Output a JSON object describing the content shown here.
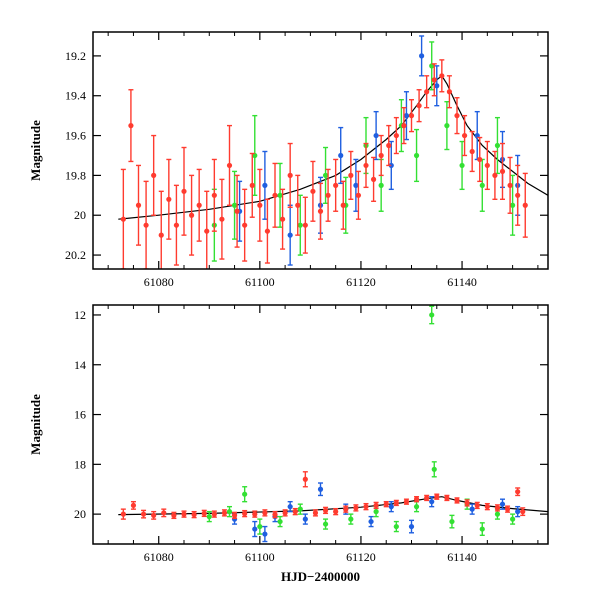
{
  "chart_data": [
    {
      "type": "scatter",
      "panel": "top",
      "title": "",
      "xlabel": "",
      "ylabel": "Magnitude",
      "xlim": [
        61067,
        61157
      ],
      "ylim": [
        20.27,
        19.08
      ],
      "y_inverted": true,
      "xticks": [
        61080,
        61100,
        61120,
        61140
      ],
      "xtick_labels": [
        "61080",
        "61100",
        "61120",
        "61140"
      ],
      "yticks": [
        19.2,
        19.4,
        19.6,
        19.8,
        20,
        20.2
      ],
      "ytick_labels": [
        "19.2",
        "19.4",
        "19.6",
        "19.8",
        "20",
        "20.2"
      ],
      "series": [
        {
          "name": "red",
          "color": "#ff3b2f",
          "points": [
            [
              61073,
              20.02,
              0.25
            ],
            [
              61074.5,
              19.55,
              0.18
            ],
            [
              61076,
              19.95,
              0.2
            ],
            [
              61077.5,
              20.05,
              0.22
            ],
            [
              61079,
              19.8,
              0.2
            ],
            [
              61080.5,
              20.1,
              0.22
            ],
            [
              61082,
              19.92,
              0.2
            ],
            [
              61083.5,
              20.05,
              0.2
            ],
            [
              61085,
              19.88,
              0.22
            ],
            [
              61086.5,
              20.0,
              0.2
            ],
            [
              61088,
              19.95,
              0.18
            ],
            [
              61089.5,
              20.08,
              0.2
            ],
            [
              61091,
              19.9,
              0.18
            ],
            [
              61092.5,
              20.02,
              0.2
            ],
            [
              61094,
              19.75,
              0.2
            ],
            [
              61095.5,
              19.98,
              0.18
            ],
            [
              61097,
              20.05,
              0.18
            ],
            [
              61098.5,
              19.85,
              0.16
            ],
            [
              61100,
              19.95,
              0.18
            ],
            [
              61101.5,
              20.08,
              0.16
            ],
            [
              61103,
              19.9,
              0.16
            ],
            [
              61104.5,
              20.02,
              0.15
            ],
            [
              61106,
              19.8,
              0.16
            ],
            [
              61107.5,
              19.95,
              0.15
            ],
            [
              61109,
              20.05,
              0.14
            ],
            [
              61110.5,
              19.88,
              0.15
            ],
            [
              61112,
              19.98,
              0.14
            ],
            [
              61113.5,
              19.9,
              0.13
            ],
            [
              61115,
              19.85,
              0.13
            ],
            [
              61116.5,
              19.95,
              0.12
            ],
            [
              61118,
              19.8,
              0.12
            ],
            [
              61119.5,
              19.9,
              0.12
            ],
            [
              61121,
              19.75,
              0.11
            ],
            [
              61122.5,
              19.82,
              0.11
            ],
            [
              61124,
              19.7,
              0.1
            ],
            [
              61125.5,
              19.65,
              0.1
            ],
            [
              61127,
              19.6,
              0.09
            ],
            [
              61128.5,
              19.55,
              0.09
            ],
            [
              61130,
              19.5,
              0.08
            ],
            [
              61131.5,
              19.45,
              0.08
            ],
            [
              61133,
              19.38,
              0.08
            ],
            [
              61134.5,
              19.32,
              0.08
            ],
            [
              61136,
              19.3,
              0.08
            ],
            [
              61137.5,
              19.38,
              0.08
            ],
            [
              61139,
              19.5,
              0.09
            ],
            [
              61140.5,
              19.6,
              0.1
            ],
            [
              61142,
              19.68,
              0.1
            ],
            [
              61143.5,
              19.72,
              0.11
            ],
            [
              61145,
              19.75,
              0.12
            ],
            [
              61146.5,
              19.8,
              0.12
            ],
            [
              61148,
              19.78,
              0.14
            ],
            [
              61149.5,
              19.85,
              0.14
            ],
            [
              61151,
              19.9,
              0.15
            ],
            [
              61152.5,
              19.95,
              0.16
            ]
          ]
        },
        {
          "name": "blue",
          "color": "#1f5fe0",
          "points": [
            [
              61096,
              19.98,
              0.15
            ],
            [
              61101,
              19.85,
              0.17
            ],
            [
              61106,
              20.1,
              0.15
            ],
            [
              61112,
              19.95,
              0.14
            ],
            [
              61116,
              19.7,
              0.14
            ],
            [
              61119,
              19.85,
              0.13
            ],
            [
              61123,
              19.6,
              0.12
            ],
            [
              61126,
              19.75,
              0.12
            ],
            [
              61129,
              19.5,
              0.12
            ],
            [
              61132,
              19.2,
              0.1
            ],
            [
              61135,
              19.35,
              0.1
            ],
            [
              61143,
              19.6,
              0.12
            ],
            [
              61148,
              19.72,
              0.14
            ],
            [
              61151,
              19.85,
              0.15
            ]
          ]
        },
        {
          "name": "green",
          "color": "#33e033",
          "points": [
            [
              61091,
              20.05,
              0.18
            ],
            [
              61095,
              19.95,
              0.17
            ],
            [
              61099,
              19.7,
              0.2
            ],
            [
              61104,
              19.9,
              0.16
            ],
            [
              61108,
              20.05,
              0.15
            ],
            [
              61113,
              19.8,
              0.14
            ],
            [
              61117,
              19.95,
              0.14
            ],
            [
              61121,
              19.65,
              0.14
            ],
            [
              61124,
              19.85,
              0.13
            ],
            [
              61128,
              19.55,
              0.13
            ],
            [
              61131,
              19.7,
              0.13
            ],
            [
              61134,
              19.25,
              0.12
            ],
            [
              61137,
              19.55,
              0.12
            ],
            [
              61140,
              19.75,
              0.12
            ],
            [
              61144,
              19.85,
              0.13
            ],
            [
              61147,
              19.65,
              0.14
            ],
            [
              61150,
              19.95,
              0.15
            ]
          ]
        }
      ],
      "model_curve": [
        [
          61072,
          20.02
        ],
        [
          61080,
          20.0
        ],
        [
          61090,
          19.97
        ],
        [
          61100,
          19.93
        ],
        [
          61108,
          19.87
        ],
        [
          61115,
          19.8
        ],
        [
          61120,
          19.72
        ],
        [
          61125,
          19.62
        ],
        [
          61128,
          19.55
        ],
        [
          61131,
          19.45
        ],
        [
          61133,
          19.38
        ],
        [
          61135,
          19.32
        ],
        [
          61136,
          19.3
        ],
        [
          61137,
          19.34
        ],
        [
          61139,
          19.45
        ],
        [
          61141,
          19.55
        ],
        [
          61144,
          19.65
        ],
        [
          61147,
          19.72
        ],
        [
          61150,
          19.78
        ],
        [
          61153,
          19.84
        ],
        [
          61157,
          19.9
        ]
      ]
    },
    {
      "type": "scatter",
      "panel": "bottom",
      "title": "",
      "xlabel": "HJD−2400000",
      "ylabel": "Magnitude",
      "xlim": [
        61067,
        61157
      ],
      "ylim": [
        21.2,
        11.6
      ],
      "y_inverted": true,
      "xticks": [
        61080,
        61100,
        61120,
        61140
      ],
      "xtick_labels": [
        "61080",
        "61100",
        "61120",
        "61140"
      ],
      "yticks": [
        12,
        14,
        16,
        18,
        20
      ],
      "ytick_labels": [
        "12",
        "14",
        "16",
        "18",
        "20"
      ],
      "series": [
        {
          "name": "red",
          "color": "#ff3b2f",
          "points": [
            [
              61073,
              20.0,
              0.2
            ],
            [
              61075,
              19.65,
              0.15
            ],
            [
              61077,
              20.0,
              0.15
            ],
            [
              61079,
              20.05,
              0.15
            ],
            [
              61081,
              19.95,
              0.15
            ],
            [
              61083,
              20.05,
              0.12
            ],
            [
              61085,
              20.0,
              0.12
            ],
            [
              61087,
              20.02,
              0.12
            ],
            [
              61089,
              19.97,
              0.12
            ],
            [
              61091,
              20.0,
              0.12
            ],
            [
              61093,
              19.95,
              0.12
            ],
            [
              61095,
              20.05,
              0.12
            ],
            [
              61097,
              19.98,
              0.12
            ],
            [
              61099,
              20.0,
              0.12
            ],
            [
              61101,
              19.95,
              0.12
            ],
            [
              61103,
              20.02,
              0.12
            ],
            [
              61105,
              19.95,
              0.12
            ],
            [
              61107,
              19.9,
              0.12
            ],
            [
              61109,
              18.6,
              0.3
            ],
            [
              61111,
              19.95,
              0.12
            ],
            [
              61113,
              19.85,
              0.12
            ],
            [
              61115,
              19.9,
              0.12
            ],
            [
              61117,
              19.8,
              0.12
            ],
            [
              61119,
              19.75,
              0.12
            ],
            [
              61121,
              19.7,
              0.12
            ],
            [
              61123,
              19.65,
              0.12
            ],
            [
              61125,
              19.6,
              0.1
            ],
            [
              61127,
              19.55,
              0.1
            ],
            [
              61129,
              19.5,
              0.1
            ],
            [
              61131,
              19.4,
              0.1
            ],
            [
              61133,
              19.35,
              0.1
            ],
            [
              61135,
              19.3,
              0.1
            ],
            [
              61137,
              19.35,
              0.1
            ],
            [
              61139,
              19.45,
              0.1
            ],
            [
              61141,
              19.55,
              0.12
            ],
            [
              61143,
              19.65,
              0.12
            ],
            [
              61145,
              19.7,
              0.12
            ],
            [
              61147,
              19.75,
              0.12
            ],
            [
              61149,
              19.8,
              0.12
            ],
            [
              61151,
              19.1,
              0.15
            ],
            [
              61152,
              19.9,
              0.15
            ]
          ]
        },
        {
          "name": "blue",
          "color": "#1f5fe0",
          "points": [
            [
              61095,
              20.2,
              0.2
            ],
            [
              61099,
              20.6,
              0.3
            ],
            [
              61101,
              20.8,
              0.3
            ],
            [
              61103,
              20.1,
              0.2
            ],
            [
              61106,
              19.7,
              0.2
            ],
            [
              61109,
              20.2,
              0.2
            ],
            [
              61112,
              19.0,
              0.25
            ],
            [
              61117,
              19.8,
              0.2
            ],
            [
              61122,
              20.3,
              0.2
            ],
            [
              61126,
              19.7,
              0.2
            ],
            [
              61130,
              20.5,
              0.25
            ],
            [
              61134,
              19.5,
              0.2
            ],
            [
              61142,
              19.8,
              0.2
            ],
            [
              61148,
              19.6,
              0.2
            ],
            [
              61151,
              19.9,
              0.2
            ]
          ]
        },
        {
          "name": "green",
          "color": "#33e033",
          "points": [
            [
              61090,
              20.1,
              0.2
            ],
            [
              61094,
              19.9,
              0.2
            ],
            [
              61097,
              19.2,
              0.3
            ],
            [
              61100,
              20.5,
              0.3
            ],
            [
              61104,
              20.3,
              0.2
            ],
            [
              61108,
              19.8,
              0.2
            ],
            [
              61113,
              20.4,
              0.2
            ],
            [
              61118,
              20.2,
              0.2
            ],
            [
              61123,
              19.9,
              0.2
            ],
            [
              61127,
              20.5,
              0.2
            ],
            [
              61131,
              19.7,
              0.2
            ],
            [
              61134,
              12.0,
              0.35
            ],
            [
              61134.5,
              18.2,
              0.3
            ],
            [
              61138,
              20.3,
              0.25
            ],
            [
              61141,
              19.6,
              0.2
            ],
            [
              61144,
              20.6,
              0.25
            ],
            [
              61147,
              20.0,
              0.2
            ],
            [
              61150,
              20.2,
              0.2
            ]
          ]
        }
      ],
      "model_curve": [
        [
          61072,
          20.02
        ],
        [
          61090,
          19.97
        ],
        [
          61108,
          19.87
        ],
        [
          61120,
          19.72
        ],
        [
          61128,
          19.55
        ],
        [
          61133,
          19.38
        ],
        [
          61136,
          19.3
        ],
        [
          61139,
          19.45
        ],
        [
          61144,
          19.65
        ],
        [
          61150,
          19.78
        ],
        [
          61157,
          19.9
        ]
      ]
    }
  ]
}
